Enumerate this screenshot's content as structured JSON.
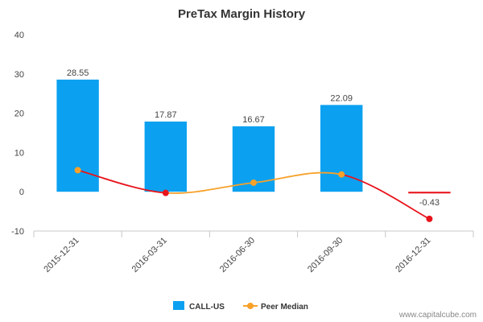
{
  "chart_data": {
    "type": "bar",
    "title": "PreTax Margin History",
    "categories": [
      "2015-12-31",
      "2016-03-31",
      "2016-06-30",
      "2016-09-30",
      "2016-12-31"
    ],
    "ylim": [
      -10,
      40
    ],
    "yticks": [
      "40",
      "30",
      "20",
      "10",
      "0",
      "-10"
    ],
    "series": [
      {
        "name": "CALL-US",
        "type": "bar",
        "color": "#0ba1f0",
        "values": [
          28.55,
          17.87,
          16.67,
          22.09,
          -0.43
        ],
        "labels": [
          "28.55",
          "17.87",
          "16.67",
          "22.09",
          "-0.43"
        ]
      },
      {
        "name": "Peer Median",
        "type": "line",
        "color": "#f7a12a",
        "values": [
          5.5,
          -0.3,
          2.3,
          4.4,
          -6.9
        ],
        "point_colors": [
          "#f7a12a",
          "#e8141c",
          "#f7a12a",
          "#f7a12a",
          "#e8141c"
        ]
      }
    ],
    "grid": false,
    "legend_position": "bottom-center"
  },
  "watermark": "www.capitalcube.com"
}
